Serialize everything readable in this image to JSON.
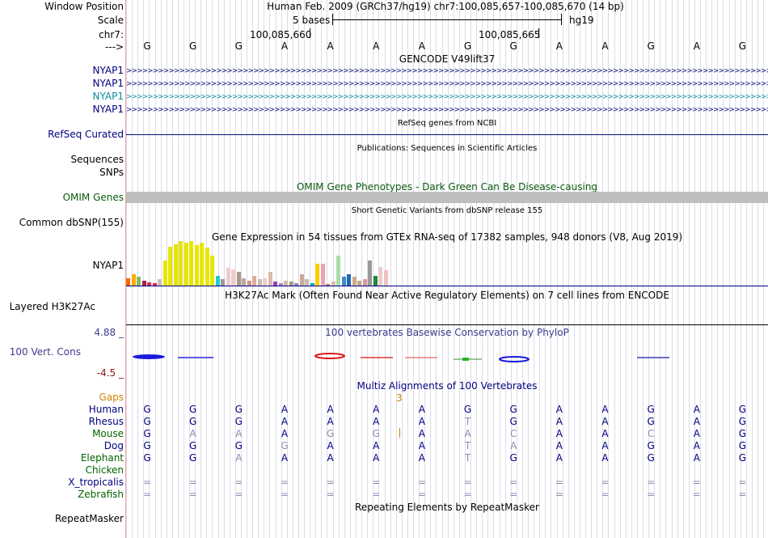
{
  "title_line": "Human Feb. 2009 (GRCh37/hg19)   chr7:100,085,657-100,085,670 (14 bp)",
  "labels": {
    "window_position": "Window Position",
    "scale": "Scale",
    "chrom": "chr7:",
    "arrow": "--->",
    "nyap1_1": "NYAP1",
    "nyap1_2": "NYAP1",
    "nyap1_3": "NYAP1",
    "nyap1_4": "NYAP1",
    "refseq": "RefSeq Curated",
    "sequences": "Sequences",
    "snps": "SNPs",
    "omim": "OMIM Genes",
    "dbsnp": "Common dbSNP(155)",
    "gtex_gene": "NYAP1",
    "h3k27ac": "Layered H3K27Ac",
    "cons_top": "4.88 _",
    "cons": "100 Vert. Cons",
    "cons_bottom": "-4.5 _",
    "gaps": "Gaps",
    "repeatmasker": "RepeatMasker"
  },
  "scale": {
    "bases": "5 bases",
    "assembly": "hg19"
  },
  "positions": {
    "left": "100,085,660",
    "right": "100,085,665"
  },
  "bases": [
    "G",
    "G",
    "G",
    "A",
    "A",
    "A",
    "A",
    "G",
    "G",
    "A",
    "A",
    "G",
    "A",
    "G"
  ],
  "track_titles": {
    "gencode": "GENCODE V49lift37",
    "refseq": "RefSeq genes from NCBI",
    "publications": "Publications: Sequences in Scientific Articles",
    "omim": "OMIM Gene Phenotypes - Dark Green Can Be Disease-causing",
    "dbsnp": "Short Genetic Variants from dbSNP release 155",
    "gtex": "Gene Expression in 54 tissues from GTEx RNA-seq of 17382 samples, 948 donors (V8, Aug 2019)",
    "h3k27ac": "H3K27Ac Mark (Often Found Near Active Regulatory Elements) on 7 cell lines from ENCODE",
    "phylop": "100 vertebrates Basewise Conservation by PhyloP",
    "multiz": "Multiz Alignments of 100 Vertebrates",
    "repeatmasker": "Repeating Elements by RepeatMasker"
  },
  "gaps_value": "3",
  "gene_pattern": ">>>>>>>>>>>>>>>>>>>>>>>>>>>>>>>>>>>>>>>>>>>>>>>>>>>>>>>>>>>>>>>>>>>>>>>>>>>>>>>>>>>>>>>>>>>>>>>>>>>>>>>>>>>>>>>>>>>>>>>>>>>>>>>>>",
  "colors": {
    "label_blue": "#000080",
    "gene_blue": "#0c0c78",
    "gene_teal": "#0c8c9c",
    "omim_green": "#0a5a0a",
    "phylop_blue": "#3c3c8c",
    "cons_red": "#8c1414",
    "gaps_orange": "#d08000",
    "species_green": "#006400",
    "omim_bar": "#bebebe"
  },
  "gtex_values": [
    12,
    18,
    14,
    8,
    5,
    4,
    10,
    40,
    62,
    66,
    70,
    68,
    70,
    64,
    68,
    60,
    48,
    16,
    10,
    28,
    26,
    22,
    12,
    8,
    16,
    10,
    12,
    22,
    6,
    4,
    8,
    6,
    4,
    18,
    10,
    4,
    34,
    34,
    2,
    6,
    48,
    14,
    18,
    14,
    8,
    10,
    40,
    16,
    30,
    24
  ],
  "gtex_colors": [
    "#ff6600",
    "#ffaa00",
    "#88bb66",
    "#aa2244",
    "#cc3355",
    "#ee2233",
    "#c8c0b8",
    "#e6e600",
    "#e6e600",
    "#e6e600",
    "#e6e600",
    "#e6e600",
    "#e6e600",
    "#e6e600",
    "#e6e600",
    "#e6e600",
    "#e6e600",
    "#22cccc",
    "#999999",
    "#eecccc",
    "#eecccc",
    "#aa9988",
    "#bbaa99",
    "#cc9988",
    "#ddaa99",
    "#ccbbaa",
    "#eecccc",
    "#ddbbaa",
    "#9944aa",
    "#aa88cc",
    "#ccbbaa",
    "#aa9977",
    "#8888cc",
    "#ccaa99",
    "#ccbbaa",
    "#00aadd",
    "#ffcc00",
    "#f0a0b0",
    "#aa8866",
    "#ddbbaa",
    "#aaddaa",
    "#4488cc",
    "#2266bb",
    "#ccaa88",
    "#bbaa88",
    "#dd9999",
    "#999999",
    "#228844",
    "#eecccc",
    "#f0c0c0"
  ],
  "species": [
    {
      "name": "Human",
      "color": "#000080",
      "bases": [
        "G",
        "G",
        "G",
        "A",
        "A",
        "A",
        "A",
        "G",
        "G",
        "A",
        "A",
        "G",
        "A",
        "G"
      ]
    },
    {
      "name": "Rhesus",
      "color": "#000080",
      "bases": [
        "G",
        "G",
        "G",
        "A",
        "A",
        "A",
        "A",
        "T",
        "G",
        "A",
        "A",
        "G",
        "A",
        "G"
      ]
    },
    {
      "name": "Mouse",
      "color": "#006400",
      "bases": [
        "G",
        "A",
        "A",
        "A",
        "G",
        "G",
        "A",
        "A",
        "C",
        "A",
        "A",
        "C",
        "A",
        "G"
      ]
    },
    {
      "name": "Dog",
      "color": "#000080",
      "bases": [
        "G",
        "G",
        "G",
        "G",
        "A",
        "A",
        "A",
        "T",
        "A",
        "A",
        "A",
        "G",
        "A",
        "G"
      ]
    },
    {
      "name": "Elephant",
      "color": "#006400",
      "bases": [
        "G",
        "G",
        "A",
        "A",
        "A",
        "A",
        "A",
        "T",
        "G",
        "A",
        "A",
        "G",
        "A",
        "G"
      ]
    },
    {
      "name": "Chicken",
      "color": "#006400",
      "bases": [
        "",
        "",
        "",
        "",
        "",
        "",
        "",
        "",
        "",
        "",
        "",
        "",
        "",
        ""
      ]
    },
    {
      "name": "X_tropicalis",
      "color": "#000080",
      "bases": [
        "=",
        "=",
        "=",
        "=",
        "=",
        "=",
        "=",
        "=",
        "=",
        "=",
        "=",
        "=",
        "=",
        "="
      ]
    },
    {
      "name": "Zebrafish",
      "color": "#006400",
      "bases": [
        "=",
        "=",
        "=",
        "=",
        "=",
        "=",
        "=",
        "=",
        "=",
        "=",
        "=",
        "=",
        "=",
        "="
      ]
    }
  ],
  "species_dim": [
    [
      false,
      false,
      false,
      false,
      false,
      false,
      false,
      false,
      false,
      false,
      false,
      false,
      false,
      false
    ],
    [
      false,
      false,
      false,
      false,
      false,
      false,
      false,
      true,
      false,
      false,
      false,
      false,
      false,
      false
    ],
    [
      false,
      true,
      true,
      false,
      true,
      true,
      false,
      true,
      true,
      false,
      false,
      true,
      false,
      false
    ],
    [
      false,
      false,
      false,
      true,
      false,
      false,
      false,
      true,
      true,
      false,
      false,
      false,
      false,
      false
    ],
    [
      false,
      false,
      true,
      false,
      false,
      false,
      false,
      true,
      false,
      false,
      false,
      false,
      false,
      false
    ],
    [
      false,
      false,
      false,
      false,
      false,
      false,
      false,
      false,
      false,
      false,
      false,
      false,
      false,
      false
    ],
    [
      true,
      true,
      true,
      true,
      true,
      true,
      true,
      true,
      true,
      true,
      true,
      true,
      true,
      true
    ],
    [
      true,
      true,
      true,
      true,
      true,
      true,
      true,
      true,
      true,
      true,
      true,
      true,
      true,
      true
    ]
  ]
}
